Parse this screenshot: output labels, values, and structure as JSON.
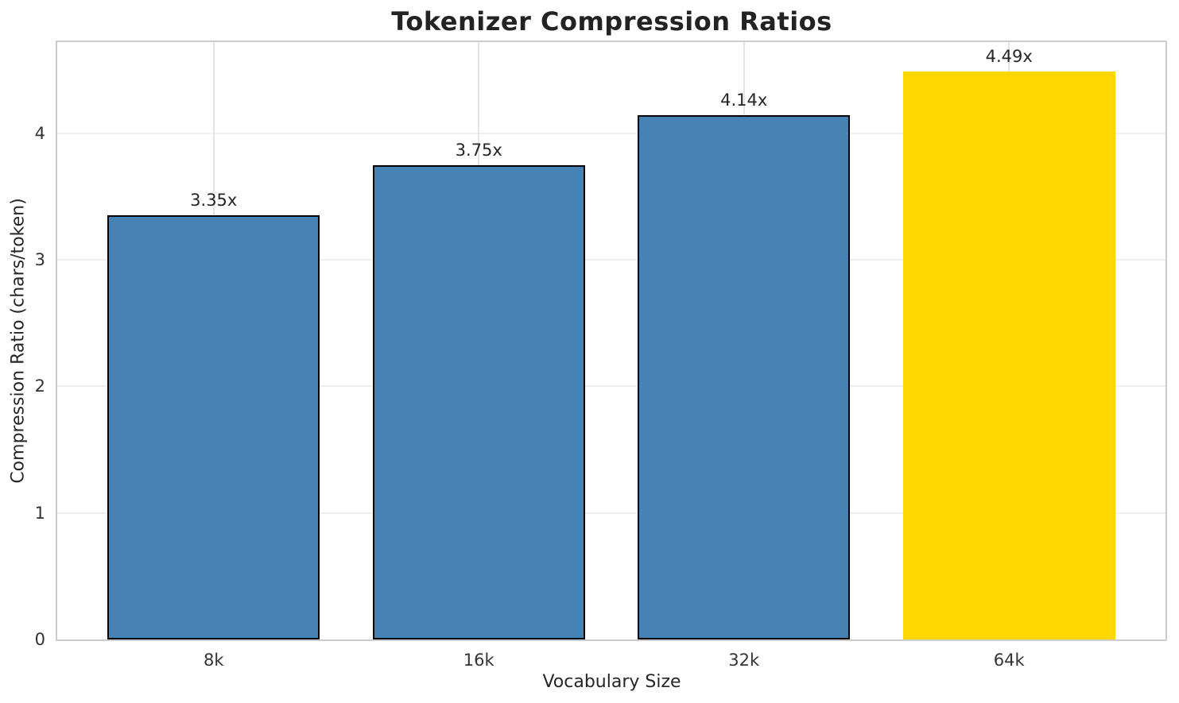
{
  "chart_data": {
    "type": "bar",
    "title": "Tokenizer Compression Ratios",
    "xlabel": "Vocabulary Size",
    "ylabel": "Compression Ratio (chars/token)",
    "categories": [
      "8k",
      "16k",
      "32k",
      "64k"
    ],
    "values": [
      3.35,
      3.75,
      4.14,
      4.49
    ],
    "value_labels": [
      "3.35x",
      "3.75x",
      "4.14x",
      "4.49x"
    ],
    "bar_colors": [
      "#4682B4",
      "#4682B4",
      "#4682B4",
      "#FFD700"
    ],
    "bar_edge_colors": [
      "#000000",
      "#000000",
      "#000000",
      null
    ],
    "highlighted_category": "64k",
    "yticks": [
      "0",
      "1",
      "2",
      "3",
      "4"
    ],
    "ylim": [
      0,
      4.72
    ],
    "grid": true,
    "legend": false,
    "colors": {
      "bar": "#4682B4",
      "highlight": "#FFD700",
      "bar_edge": "#000000",
      "grid_line_h": "#efefef",
      "grid_line_v": "#e3e3e3",
      "spine": "#cccccc",
      "text": "#262626"
    }
  }
}
